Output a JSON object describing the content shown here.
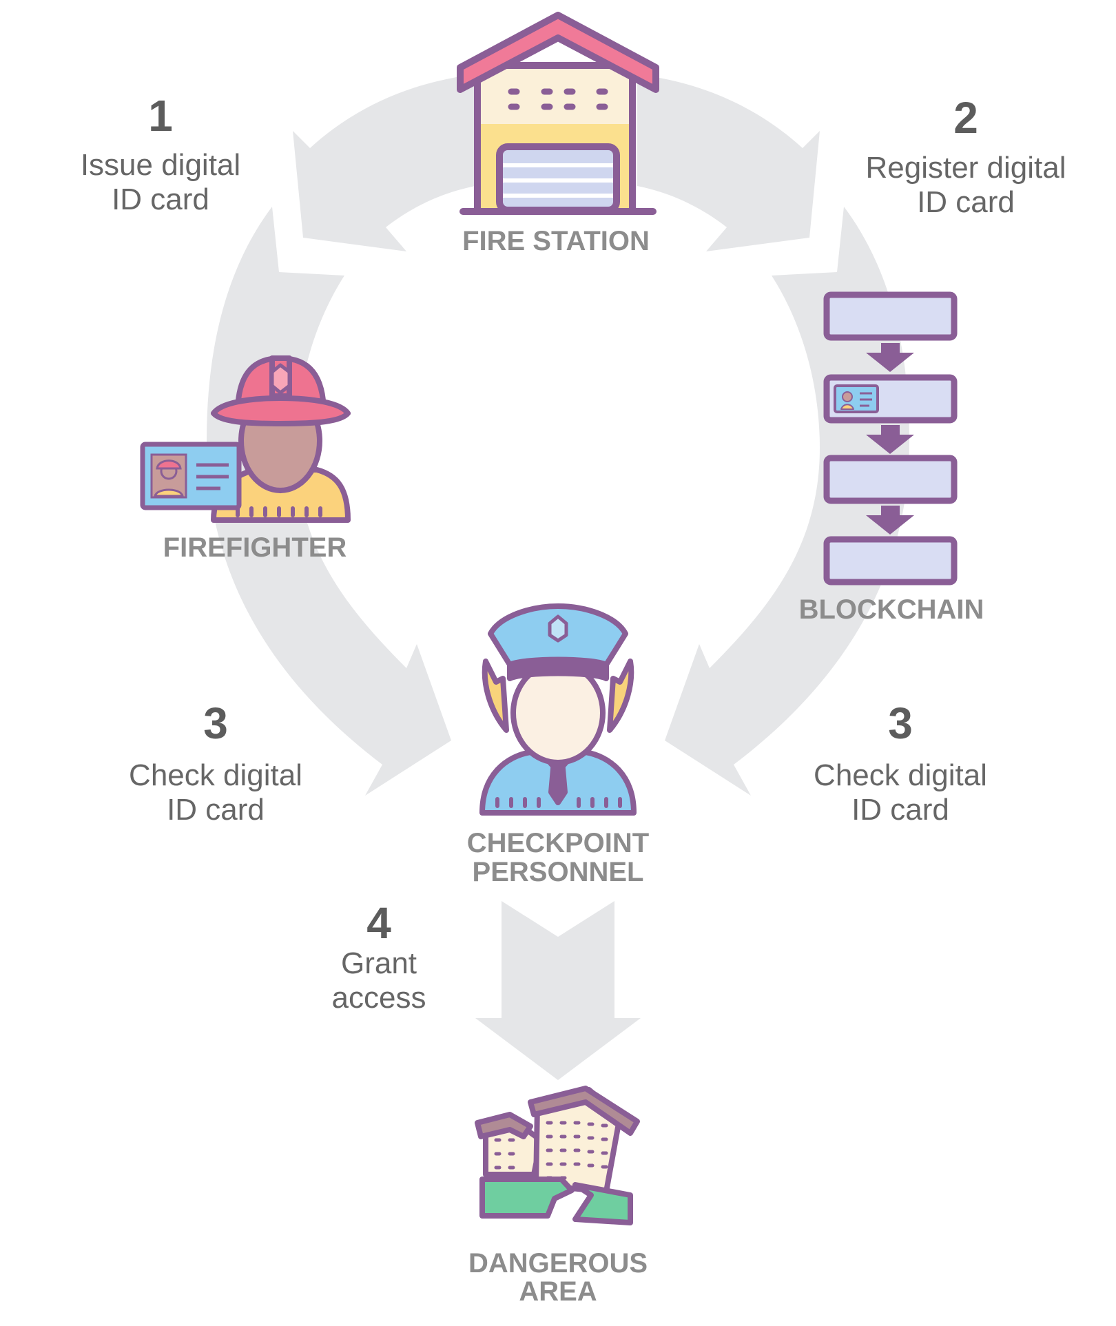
{
  "nodes": {
    "fire_station": "FIRE STATION",
    "firefighter": "FIREFIGHTER",
    "blockchain": "BLOCKCHAIN",
    "checkpoint_line1": "CHECKPOINT",
    "checkpoint_line2": "PERSONNEL",
    "dangerous_line1": "DANGEROUS",
    "dangerous_line2": "AREA"
  },
  "steps": {
    "issue": {
      "number": "1",
      "line1": "Issue digital",
      "line2": "ID card"
    },
    "register": {
      "number": "2",
      "line1": "Register digital",
      "line2": "ID card"
    },
    "check_left": {
      "number": "3",
      "line1": "Check digital",
      "line2": "ID card"
    },
    "check_right": {
      "number": "3",
      "line1": "Check digital",
      "line2": "ID card"
    },
    "grant": {
      "number": "4",
      "line1": "Grant",
      "line2": "access"
    }
  },
  "colors": {
    "arrow": "#e5e6e8",
    "outline": "#8a5e96",
    "roof": "#f07a98",
    "wall": "#fbf0d9",
    "wall_lower": "#fbe08e",
    "door": "#cfd6ef",
    "helmet": "#ee7390",
    "skin": "#c89c9a",
    "jacket": "#fbd27c",
    "id_card": "#8ecdf0",
    "police_blue": "#8ecdf0",
    "hair": "#f8d37b",
    "face": "#fbf0e3",
    "block": "#d9ddf3",
    "ground": "#6fcea0",
    "building_roof": "#b08b95"
  }
}
